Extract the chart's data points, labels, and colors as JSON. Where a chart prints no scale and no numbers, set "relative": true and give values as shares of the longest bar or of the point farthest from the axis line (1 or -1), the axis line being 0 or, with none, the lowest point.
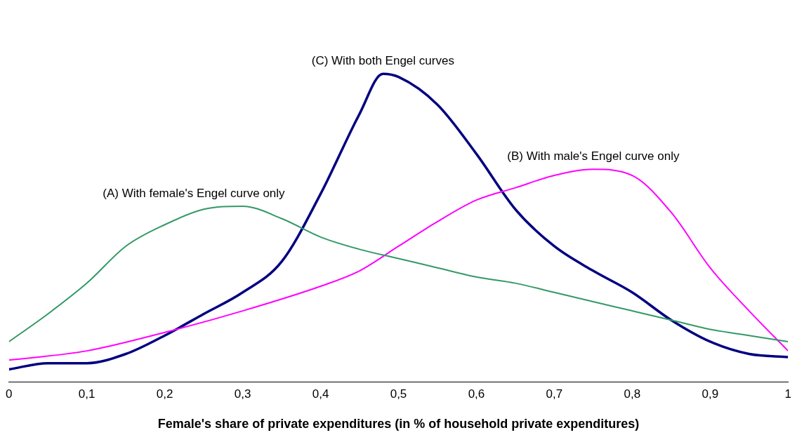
{
  "chart_data": {
    "type": "line",
    "relative": true,
    "xlabel": "Female's share of private expenditures (in % of household private expenditures)",
    "xlim": [
      0,
      1
    ],
    "xticks": [
      0,
      {
        "value": 0.1,
        "label": "0,1"
      },
      {
        "value": 0.2,
        "label": "0,2"
      },
      {
        "value": 0.3,
        "label": "0,3"
      },
      {
        "value": 0.4,
        "label": "0,4"
      },
      {
        "value": 0.5,
        "label": "0,5"
      },
      {
        "value": 0.6,
        "label": "0,6"
      },
      {
        "value": 0.7,
        "label": "0,7"
      },
      {
        "value": 0.8,
        "label": "0,8"
      },
      {
        "value": 0.9,
        "label": "0,9"
      },
      1
    ],
    "grid": false,
    "legend": false,
    "marker": "none",
    "line_style": "solid",
    "series": [
      {
        "name": "(A) With female's Engel curve only",
        "color": "#339966",
        "x": [
          0,
          0.05,
          0.1,
          0.15,
          0.2,
          0.25,
          0.3,
          0.35,
          0.4,
          0.45,
          0.5,
          0.55,
          0.6,
          0.65,
          0.7,
          0.75,
          0.8,
          0.85,
          0.9,
          0.95,
          1
        ],
        "values": [
          0.13,
          0.22,
          0.32,
          0.44,
          0.51,
          0.56,
          0.57,
          0.53,
          0.47,
          0.43,
          0.4,
          0.37,
          0.34,
          0.32,
          0.29,
          0.26,
          0.23,
          0.2,
          0.17,
          0.15,
          0.13
        ]
      },
      {
        "name": "(B) With male's Engel curve only",
        "color": "#ff00ff",
        "x": [
          0,
          0.1,
          0.2,
          0.3,
          0.4,
          0.45,
          0.5,
          0.55,
          0.6,
          0.65,
          0.7,
          0.75,
          0.8,
          0.85,
          0.9,
          0.95,
          1
        ],
        "values": [
          0.07,
          0.1,
          0.16,
          0.23,
          0.31,
          0.36,
          0.44,
          0.52,
          0.59,
          0.63,
          0.67,
          0.69,
          0.67,
          0.55,
          0.37,
          0.23,
          0.1
        ]
      },
      {
        "name": "(C) With both Engel curves",
        "color": "#000080",
        "x": [
          0,
          0.05,
          0.1,
          0.15,
          0.2,
          0.25,
          0.3,
          0.35,
          0.4,
          0.45,
          0.48,
          0.5,
          0.55,
          0.6,
          0.65,
          0.7,
          0.75,
          0.8,
          0.85,
          0.9,
          0.95,
          1
        ],
        "values": [
          0.04,
          0.06,
          0.06,
          0.09,
          0.15,
          0.22,
          0.29,
          0.39,
          0.61,
          0.87,
          1,
          0.99,
          0.9,
          0.74,
          0.56,
          0.44,
          0.36,
          0.29,
          0.2,
          0.13,
          0.09,
          0.08
        ]
      }
    ]
  }
}
